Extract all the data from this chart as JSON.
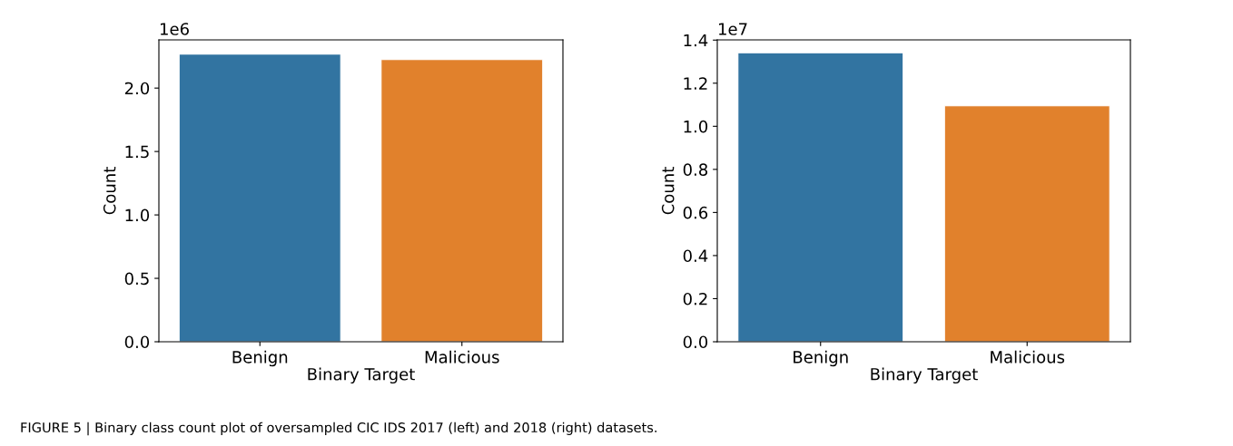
{
  "chart_data": [
    {
      "type": "bar",
      "xlabel": "Binary Target",
      "ylabel": "Count",
      "categories": [
        "Benign",
        "Malicious"
      ],
      "values": [
        2.268,
        2.225
      ],
      "colors": [
        "#3274a1",
        "#e1812c"
      ],
      "ylim": [
        0,
        2.38
      ],
      "yticks": [
        {
          "value": 0,
          "label": "0.0"
        },
        0.5,
        {
          "value": 1,
          "label": "1.0"
        },
        1.5,
        {
          "value": 2,
          "label": "2.0"
        }
      ],
      "grid": false,
      "annotations": [
        "1e6",
        "FIGURE 5 | Binary class count plot of oversampled CIC IDS 2017 (left) and 2018 (right) datasets."
      ]
    },
    {
      "type": "bar",
      "xlabel": "Binary Target",
      "ylabel": "Count",
      "categories": [
        "Benign",
        "Malicious"
      ],
      "values": [
        1.341,
        1.095
      ],
      "colors": [
        "#3274a1",
        "#e1812c"
      ],
      "ylim": [
        0,
        1.401
      ],
      "yticks": [
        {
          "value": 0,
          "label": "0.0"
        },
        0.2,
        0.4,
        0.6,
        0.8,
        {
          "value": 1,
          "label": "1.0"
        },
        1.2,
        1.4
      ],
      "grid": false,
      "annotations": [
        "1e7"
      ]
    }
  ]
}
